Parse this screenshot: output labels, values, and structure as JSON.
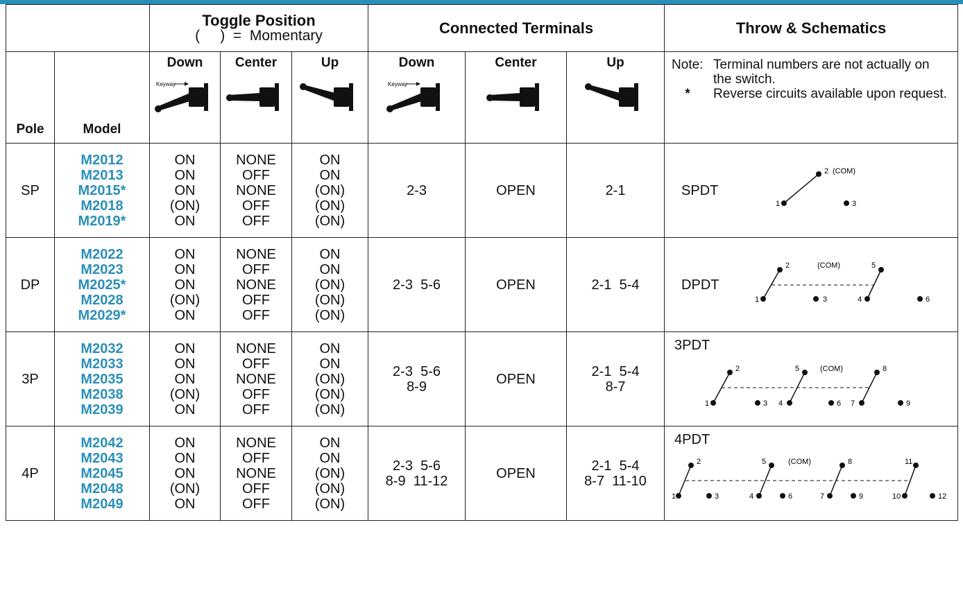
{
  "headers": {
    "toggle_title": "Toggle Position",
    "toggle_sub": "(     )  =  Momentary",
    "connected": "Connected Terminals",
    "throw": "Throw & Schematics",
    "pole": "Pole",
    "model": "Model",
    "down": "Down",
    "center": "Center",
    "up": "Up",
    "keyway": "Keyway"
  },
  "note": {
    "label": "Note:",
    "line1": "Terminal numbers are not actually on the switch.",
    "star": "*",
    "line2": "Reverse circuits available upon request."
  },
  "rows": [
    {
      "pole": "SP",
      "models": [
        "M2012",
        "M2013",
        "M2015*",
        "M2018",
        "M2019*"
      ],
      "down": [
        "ON",
        "ON",
        "ON",
        "(ON)",
        "ON"
      ],
      "center": [
        "NONE",
        "OFF",
        "NONE",
        "OFF",
        "OFF"
      ],
      "up": [
        "ON",
        "ON",
        "(ON)",
        "(ON)",
        "(ON)"
      ],
      "ct_down": [
        "2-3"
      ],
      "ct_center": "OPEN",
      "ct_up": [
        "2-1"
      ],
      "throw": "SPDT"
    },
    {
      "pole": "DP",
      "models": [
        "M2022",
        "M2023",
        "M2025*",
        "M2028",
        "M2029*"
      ],
      "down": [
        "ON",
        "ON",
        "ON",
        "(ON)",
        "ON"
      ],
      "center": [
        "NONE",
        "OFF",
        "NONE",
        "OFF",
        "OFF"
      ],
      "up": [
        "ON",
        "ON",
        "(ON)",
        "(ON)",
        "(ON)"
      ],
      "ct_down": [
        "2-3  5-6"
      ],
      "ct_center": "OPEN",
      "ct_up": [
        "2-1  5-4"
      ],
      "throw": "DPDT"
    },
    {
      "pole": "3P",
      "models": [
        "M2032",
        "M2033",
        "M2035",
        "M2038",
        "M2039"
      ],
      "down": [
        "ON",
        "ON",
        "ON",
        "(ON)",
        "ON"
      ],
      "center": [
        "NONE",
        "OFF",
        "NONE",
        "OFF",
        "OFF"
      ],
      "up": [
        "ON",
        "ON",
        "(ON)",
        "(ON)",
        "(ON)"
      ],
      "ct_down": [
        "2-3  5-6",
        "8-9"
      ],
      "ct_center": "OPEN",
      "ct_up": [
        "2-1  5-4",
        "8-7"
      ],
      "throw": "3PDT"
    },
    {
      "pole": "4P",
      "models": [
        "M2042",
        "M2043",
        "M2045",
        "M2048",
        "M2049"
      ],
      "down": [
        "ON",
        "ON",
        "ON",
        "(ON)",
        "ON"
      ],
      "center": [
        "NONE",
        "OFF",
        "NONE",
        "OFF",
        "OFF"
      ],
      "up": [
        "ON",
        "ON",
        "(ON)",
        "(ON)",
        "(ON)"
      ],
      "ct_down": [
        "2-3  5-6",
        "8-9  11-12"
      ],
      "ct_center": "OPEN",
      "ct_up": [
        "2-1  5-4",
        "8-7  11-10"
      ],
      "throw": "4PDT"
    }
  ],
  "schematic": {
    "com": "(COM)",
    "sp": [
      "1",
      "2",
      "3"
    ],
    "dp": [
      "1",
      "2",
      "3",
      "4",
      "5",
      "6"
    ],
    "p3": [
      "1",
      "2",
      "3",
      "4",
      "5",
      "6",
      "7",
      "8",
      "9"
    ],
    "p4": [
      "1",
      "2",
      "3",
      "4",
      "5",
      "6",
      "7",
      "8",
      "9",
      "10",
      "11",
      "12"
    ]
  },
  "colors": {
    "accent": "#2a8fb8"
  }
}
